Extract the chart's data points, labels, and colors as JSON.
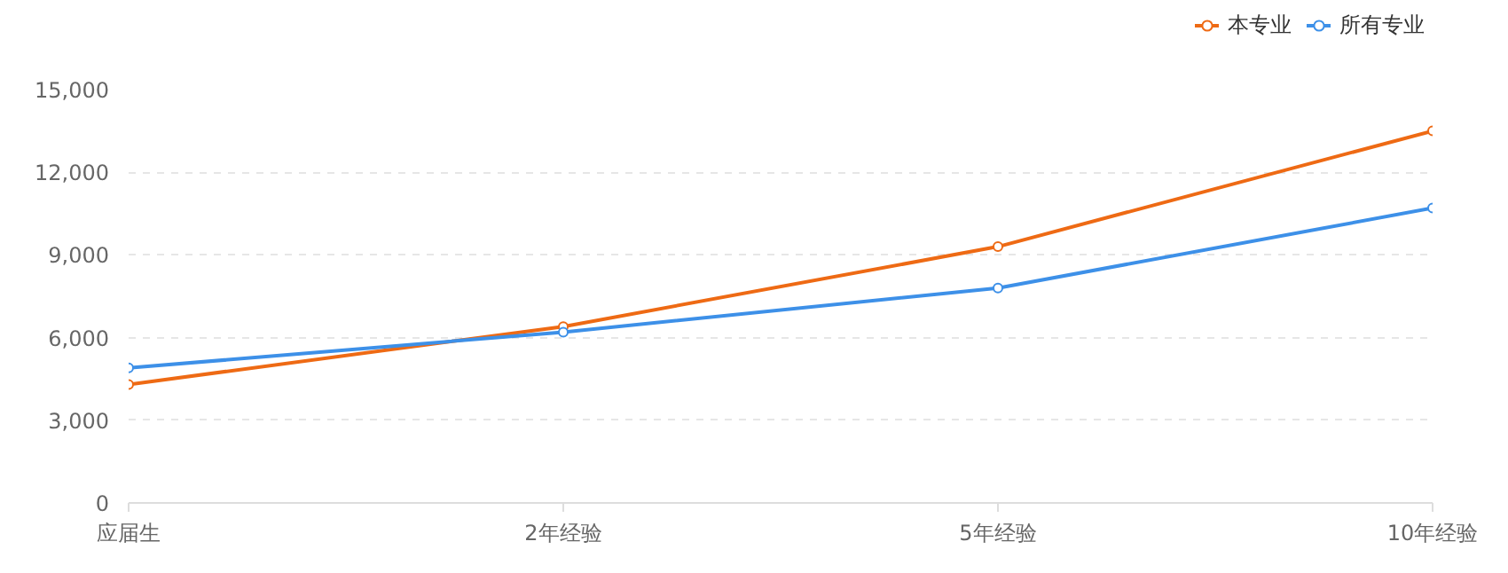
{
  "chart_data": {
    "type": "line",
    "categories": [
      "应届生",
      "2年经验",
      "5年经验",
      "10年经验"
    ],
    "series": [
      {
        "name": "本专业",
        "color": "#ee6a14",
        "values": [
          4300,
          6400,
          9300,
          13500
        ]
      },
      {
        "name": "所有专业",
        "color": "#3d90e8",
        "values": [
          4900,
          6200,
          7800,
          10700
        ]
      }
    ],
    "ylim": [
      0,
      15000
    ],
    "yticks": [
      0,
      {
        "value": 3000,
        "label": "3,000"
      },
      {
        "value": 6000,
        "label": "6,000"
      },
      {
        "value": 9000,
        "label": "9,000"
      },
      {
        "value": 12000,
        "label": "12,000"
      },
      {
        "value": 15000,
        "label": "15,000"
      }
    ],
    "grid": "y",
    "legend": "top right",
    "marker": "circle",
    "line_style": "solid"
  }
}
